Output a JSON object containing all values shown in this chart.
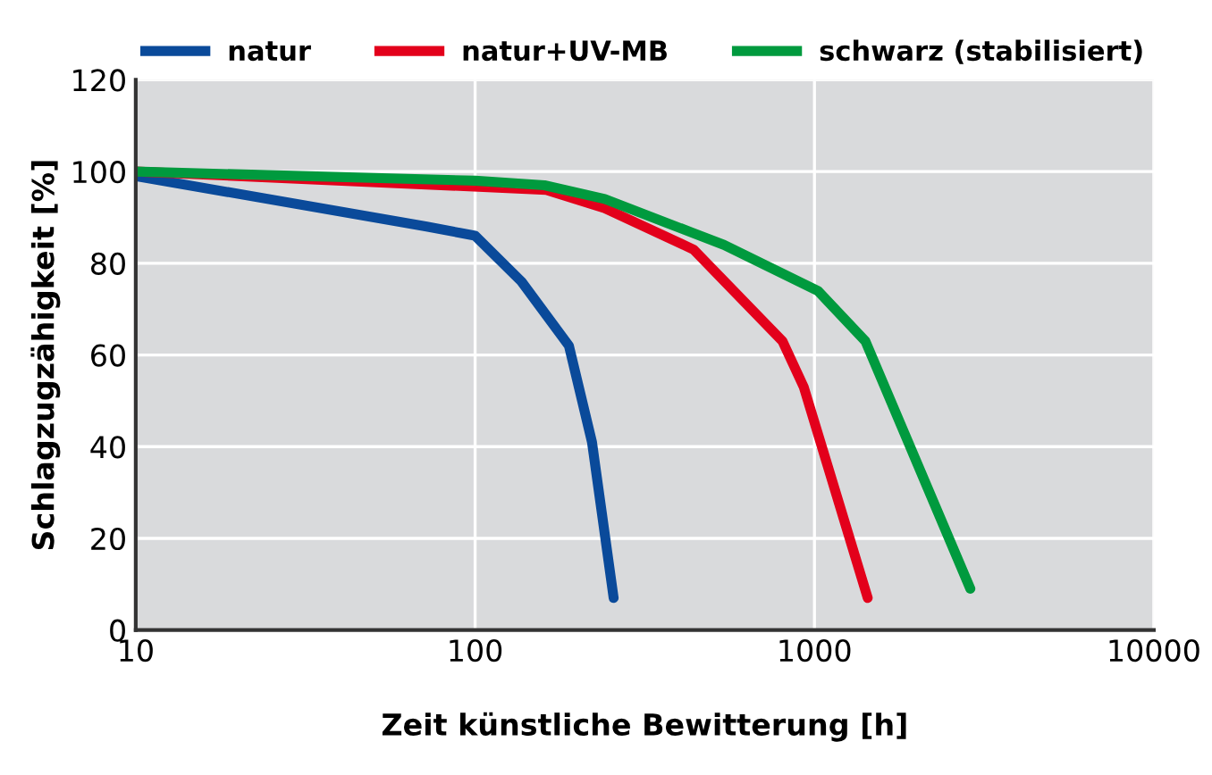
{
  "chart_data": {
    "type": "line",
    "xlabel": "Zeit künstliche Bewitterung [h]",
    "ylabel": "Schlagzugzähigkeit [%]",
    "log": "x",
    "xlim": [
      10,
      10000
    ],
    "xticks": [
      10,
      100,
      1000,
      10000
    ],
    "ylim": [
      0,
      120
    ],
    "yticks": [
      0,
      20,
      40,
      60,
      80,
      100,
      120
    ],
    "grid": true,
    "legend": "top",
    "marker": "none",
    "line_style": "solid",
    "series": [
      {
        "name": "natur",
        "color": "#0a4a9a",
        "x": [
          10,
          72,
          100,
          137,
          189,
          221,
          256
        ],
        "values": [
          99,
          88,
          86,
          76,
          62,
          41,
          7
        ]
      },
      {
        "name": "natur+UV-MB",
        "color": "#e3001b",
        "x": [
          10,
          162,
          241,
          440,
          805,
          930,
          1435
        ],
        "values": [
          100,
          96,
          92,
          83,
          63,
          53,
          7
        ]
      },
      {
        "name": "schwarz (stabilisiert)",
        "color": "#009a3e",
        "x": [
          10,
          100,
          160,
          241,
          541,
          1023,
          1413,
          2880
        ],
        "values": [
          100,
          98,
          97,
          94,
          84,
          74,
          63,
          9
        ]
      }
    ]
  }
}
